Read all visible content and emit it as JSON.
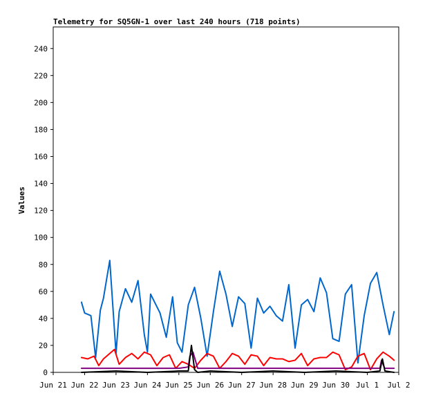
{
  "chart_data": {
    "type": "line",
    "title": "Telemetry for SQ5GN-1 over last 240 hours (718 points)",
    "xlabel": "",
    "ylabel": "Values",
    "x_ticks": [
      "Jun 21",
      "Jun 22",
      "Jun 23",
      "Jun 24",
      "Jun 25",
      "Jun 26",
      "Jun 27",
      "Jun 28",
      "Jun 29",
      "Jun 30",
      "Jul 1",
      "Jul 2"
    ],
    "xlim": [
      "Jun 21 00:00",
      "Jul 2 00:00"
    ],
    "y_ticks": [
      0,
      20,
      40,
      60,
      80,
      100,
      120,
      140,
      160,
      180,
      200,
      220,
      240
    ],
    "ylim": [
      0,
      256
    ],
    "grid": false,
    "legend": "none",
    "series": [
      {
        "color": "#0066cc",
        "x_days_since_jun21": [
          0.9,
          1.0,
          1.2,
          1.35,
          1.5,
          1.6,
          1.8,
          2.0,
          2.1,
          2.3,
          2.5,
          2.7,
          2.9,
          3.0,
          3.1,
          3.4,
          3.6,
          3.8,
          3.95,
          4.1,
          4.3,
          4.5,
          4.7,
          4.9,
          5.1,
          5.3,
          5.5,
          5.7,
          5.9,
          6.1,
          6.3,
          6.5,
          6.7,
          6.9,
          7.1,
          7.3,
          7.5,
          7.7,
          7.9,
          8.1,
          8.3,
          8.5,
          8.7,
          8.9,
          9.1,
          9.3,
          9.5,
          9.7,
          9.9,
          10.1,
          10.3,
          10.5,
          10.7,
          10.85
        ],
        "values": [
          52,
          44,
          42,
          11,
          46,
          55,
          83,
          14,
          45,
          62,
          52,
          68,
          28,
          15,
          58,
          44,
          26,
          56,
          22,
          15,
          50,
          63,
          40,
          12,
          45,
          75,
          58,
          34,
          56,
          51,
          18,
          55,
          44,
          49,
          42,
          38,
          65,
          18,
          50,
          54,
          45,
          70,
          59,
          25,
          23,
          58,
          65,
          7,
          42,
          66,
          74,
          50,
          28,
          45
        ]
      },
      {
        "color": "#ff0000",
        "x_days_since_jun21": [
          0.9,
          1.1,
          1.3,
          1.45,
          1.6,
          1.8,
          1.95,
          2.1,
          2.3,
          2.5,
          2.7,
          2.9,
          3.1,
          3.3,
          3.5,
          3.7,
          3.9,
          4.1,
          4.3,
          4.5,
          4.7,
          4.9,
          5.1,
          5.3,
          5.5,
          5.7,
          5.9,
          6.1,
          6.3,
          6.5,
          6.7,
          6.9,
          7.1,
          7.3,
          7.5,
          7.7,
          7.9,
          8.1,
          8.3,
          8.5,
          8.7,
          8.9,
          9.1,
          9.3,
          9.5,
          9.7,
          9.9,
          10.1,
          10.3,
          10.5,
          10.7,
          10.85
        ],
        "values": [
          11,
          10,
          12,
          5,
          10,
          14,
          17,
          6,
          11,
          14,
          10,
          15,
          13,
          5,
          11,
          13,
          3,
          8,
          6,
          3,
          9,
          14,
          12,
          3,
          8,
          14,
          12,
          6,
          13,
          12,
          5,
          11,
          10,
          10,
          8,
          9,
          14,
          5,
          10,
          11,
          11,
          15,
          13,
          2,
          4,
          12,
          14,
          2,
          10,
          15,
          12,
          9
        ]
      },
      {
        "color": "#800080",
        "x_days_since_jun21": [
          0.9,
          1.5,
          2.0,
          2.5,
          3.0,
          3.5,
          4.0,
          4.3,
          4.35,
          4.45,
          4.6,
          5.0,
          5.5,
          6.0,
          6.5,
          7.0,
          7.5,
          8.0,
          8.5,
          9.0,
          9.5,
          10.0,
          10.4,
          10.45,
          10.55,
          10.85
        ],
        "values": [
          3,
          3,
          3,
          3,
          3,
          3,
          3,
          4,
          12,
          15,
          3,
          3,
          3,
          3,
          3,
          3,
          3,
          3,
          3,
          3,
          3,
          3,
          3,
          9,
          3,
          3
        ]
      },
      {
        "color": "#000000",
        "x_days_since_jun21": [
          0.9,
          2.0,
          3.0,
          4.0,
          4.3,
          4.4,
          4.5,
          4.6,
          5.0,
          6.0,
          7.0,
          8.0,
          9.0,
          10.0,
          10.4,
          10.48,
          10.56,
          10.85
        ],
        "values": [
          0,
          1,
          0,
          1,
          1,
          20,
          2,
          0,
          1,
          0,
          1,
          0,
          1,
          0,
          1,
          10,
          1,
          0
        ]
      }
    ]
  }
}
